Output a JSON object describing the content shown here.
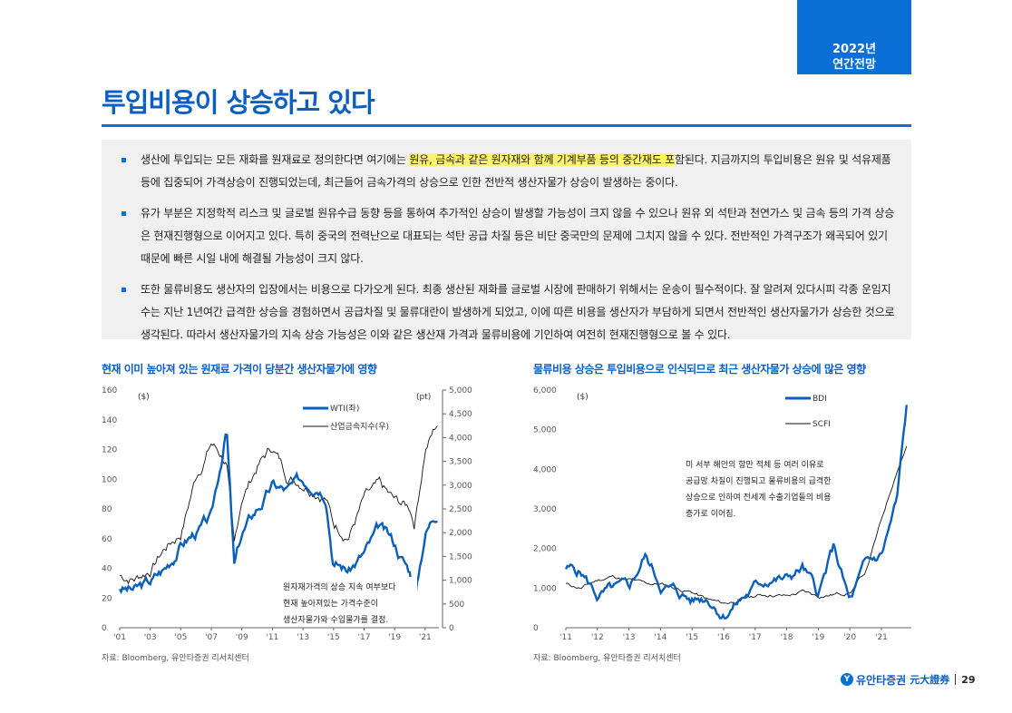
{
  "header": {
    "badge_year": "2022년",
    "badge_sub": "연간전망"
  },
  "title": "투입비용이 상승하고 있다",
  "bullets": [
    {
      "pre": "생산에 투입되는 모든 재화를 원재료로 정의한다면 여기에는 ",
      "highlight": "원유, 금속과 같은 원자재와 함께 기계부품 등의 중간재도 포",
      "post": "함된다. 지금까지의 투입비용은 원유 및 석유제품 등에 집중되어 가격상승이 진행되었는데, 최근들어 금속가격의 상승으로 인한 전반적 생산자물가 상승이 발생하는 중이다."
    },
    {
      "pre": "유가 부분은 지정학적 리스크 및 글로벌 원유수급 동향 등을 통하여 추가적인 상승이 발생할 가능성이 크지 않을 수 있으나 원유 외 석탄과 천연가스 및 금속 등의 가격 상승은 현재진행형으로 이어지고 있다. 특히 중국의 전력난으로 대표되는 석탄 공급 차질 등은 비단 중국만의 문제에 그치지 않을 수 있다. 전반적인 가격구조가 왜곡되어 있기 때문에 빠른 시일 내에 해결될 가능성이 크지 않다.",
      "highlight": "",
      "post": ""
    },
    {
      "pre": "또한 물류비용도 생산자의 입장에서는 비용으로 다가오게 된다. 최종 생산된 재화를 글로벌 시장에 판매하기 위해서는 운송이 필수적이다. 잘 알려져 있다시피 각종 운임지수는 지난 1년여간 급격한 상승을 경험하면서 공급차질 및 물류대란이 발생하게 되었고, 이에 따른 비용을 생산자가 부담하게 되면서 전반적인 생산자물가가 상승한 것으로 생각된다. 따라서 생산자물가의 지속 상승 가능성은 이와 같은 생산재 가격과 물류비용에 기인하여 여전히 현재진행형으로 볼 수 있다.",
      "highlight": "",
      "post": ""
    }
  ],
  "chart_left": {
    "caption": "현재 이미 높아져 있는 원재료 가격이 당분간 생산자물가에 영향",
    "source": "자료: Bloomberg, 유안타증권 리서치센터",
    "left_unit": "($)",
    "right_unit": "(pt)",
    "left_ticks": [
      "160",
      "140",
      "120",
      "100",
      "80",
      "60",
      "40",
      "20",
      "0"
    ],
    "right_ticks": [
      "5,000",
      "4,500",
      "4,000",
      "3,500",
      "3,000",
      "2,500",
      "2,000",
      "1,500",
      "1,000",
      "500",
      "0"
    ],
    "x_ticks": [
      "'01",
      "'03",
      "'05",
      "'07",
      "'09",
      "'11",
      "'13",
      "'15",
      "'17",
      "'19",
      "'21"
    ],
    "legend": [
      "WTI(좌)",
      "산업금속지수(우)"
    ],
    "annotation": [
      "원자재가격의 상승 지속 여부보다",
      "현재 높아져있는 가격수준이",
      "생산자물가와 수입물가를 결정."
    ]
  },
  "chart_right": {
    "caption": "물류비용 상승은 투입비용으로 인식되므로 최근 생산자물가 상승에 많은 영향",
    "source": "자료: Bloomberg, 유안타증권 리서치센터",
    "left_unit": "($)",
    "left_ticks": [
      "6,000",
      "5,000",
      "4,000",
      "3,000",
      "2,000",
      "1,000",
      "0"
    ],
    "x_ticks": [
      "'11",
      "'12",
      "'13",
      "'14",
      "'15",
      "'16",
      "'17",
      "'18",
      "'19",
      "'20",
      "'21"
    ],
    "legend": [
      "BDI",
      "SCFI"
    ],
    "annotation": [
      "미 서부 해안의 항만 적체 등 여러 이유로",
      "공급망 차질이 진행되고 물류비용의 급격한",
      "상승으로 인하여 전세계 수출기업들의 비용",
      "증가로 이어짐."
    ]
  },
  "chart_data": [
    {
      "type": "line",
      "title": "현재 이미 높아져 있는 원재료 가격이 당분간 생산자물가에 영향",
      "xlabel": "",
      "ylabel": "($)",
      "x": [
        2001,
        2002,
        2003,
        2004,
        2005,
        2006,
        2007,
        2008,
        2008.5,
        2009,
        2010,
        2011,
        2012,
        2013,
        2014,
        2014.5,
        2015,
        2016,
        2017,
        2018,
        2019,
        2020,
        2020.3,
        2021,
        2021.8
      ],
      "ylim": [
        0,
        160
      ],
      "y2lim": [
        0,
        5000
      ],
      "series": [
        {
          "name": "WTI(좌)",
          "axis": "left",
          "values": [
            27,
            25,
            30,
            40,
            57,
            65,
            72,
            135,
            40,
            62,
            80,
            95,
            92,
            98,
            100,
            95,
            48,
            40,
            50,
            65,
            55,
            38,
            18,
            65,
            80
          ]
        },
        {
          "name": "산업금속지수(우)",
          "axis": "right",
          "values": [
            1100,
            1050,
            1250,
            1700,
            2000,
            3200,
            3900,
            3500,
            1600,
            2700,
            3400,
            3800,
            3200,
            3100,
            2950,
            2800,
            2200,
            2000,
            2700,
            2900,
            2600,
            2500,
            2200,
            3800,
            4300
          ]
        }
      ]
    },
    {
      "type": "line",
      "title": "물류비용 상승은 투입비용으로 인식되므로 최근 생산자물가 상승에 많은 영향",
      "xlabel": "",
      "ylabel": "($)",
      "x": [
        2011,
        2011.5,
        2012,
        2012.5,
        2013,
        2013.5,
        2014,
        2014.5,
        2015,
        2015.5,
        2016,
        2016.5,
        2017,
        2017.5,
        2018,
        2018.5,
        2019,
        2019.5,
        2020,
        2020.5,
        2021,
        2021.5,
        2021.8
      ],
      "ylim": [
        0,
        6000
      ],
      "series": [
        {
          "name": "BDI",
          "values": [
            1500,
            1400,
            800,
            900,
            900,
            1800,
            1100,
            900,
            700,
            800,
            400,
            700,
            1000,
            1300,
            1200,
            1500,
            800,
            2000,
            600,
            1500,
            1800,
            3200,
            5500
          ]
        },
        {
          "name": "SCFI",
          "values": [
            1100,
            1000,
            1200,
            1300,
            1200,
            1100,
            1100,
            1000,
            900,
            700,
            600,
            700,
            800,
            850,
            800,
            900,
            800,
            850,
            900,
            1400,
            2700,
            4000,
            4600
          ]
        }
      ]
    }
  ],
  "footer": {
    "brand": "유안타증권",
    "brand_cn": "元大證券",
    "logo_mark": "Y",
    "page": "29"
  }
}
